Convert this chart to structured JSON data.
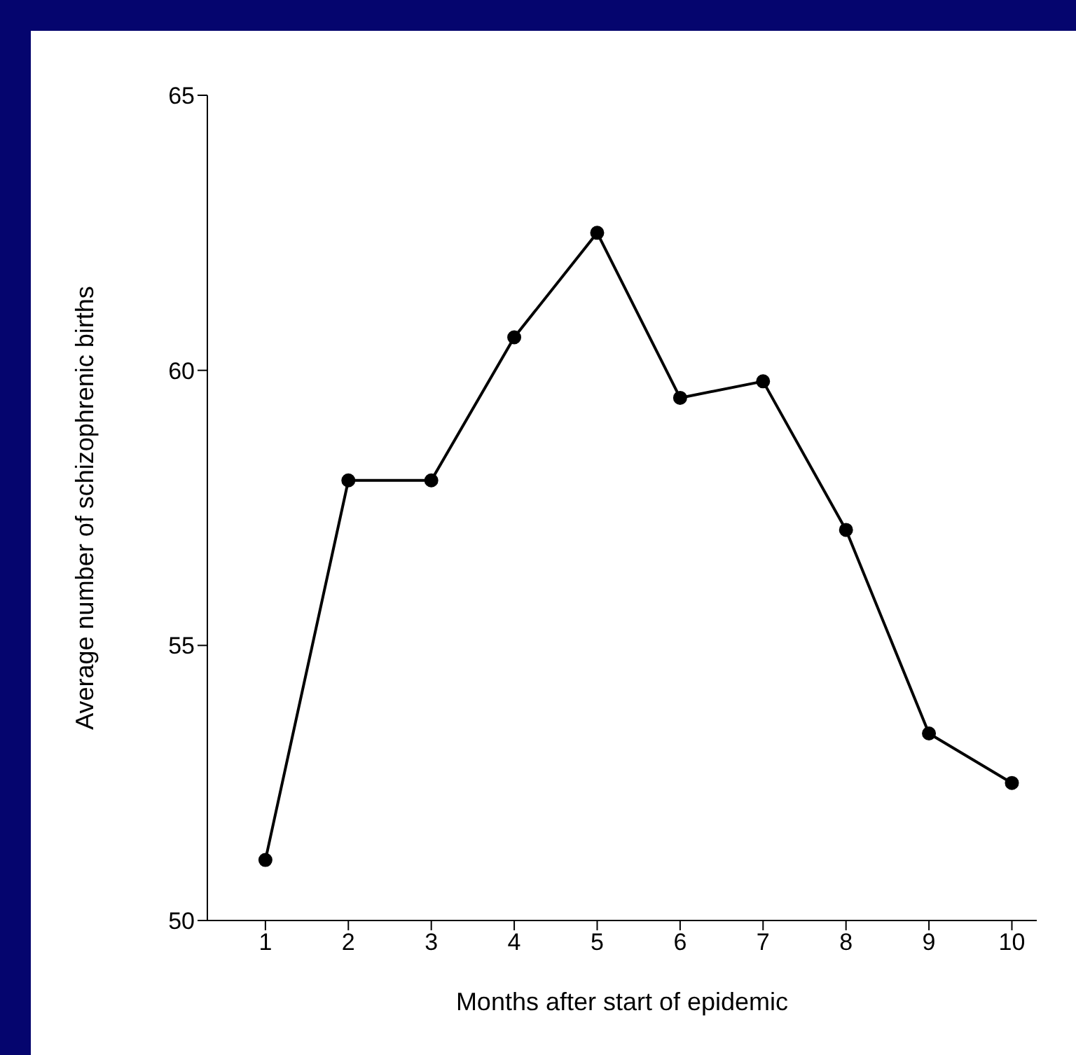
{
  "chart_data": {
    "type": "line",
    "xlabel": "Months after start of epidemic",
    "ylabel": "Average number of schizophrenic births",
    "x": [
      1,
      2,
      3,
      4,
      5,
      6,
      7,
      8,
      9,
      10
    ],
    "series": [
      {
        "color": "#000000",
        "values": [
          51.1,
          58.0,
          58.0,
          60.6,
          62.5,
          59.5,
          59.8,
          57.1,
          53.4,
          52.5
        ]
      }
    ],
    "xlim": [
      0.3,
      10.3
    ],
    "xticks": [
      1,
      2,
      3,
      4,
      5,
      6,
      7,
      8,
      9,
      10
    ],
    "ylim": [
      50,
      65
    ],
    "yticks": [
      50,
      55,
      60,
      65
    ],
    "marker": "circle",
    "line_style": "solid"
  }
}
